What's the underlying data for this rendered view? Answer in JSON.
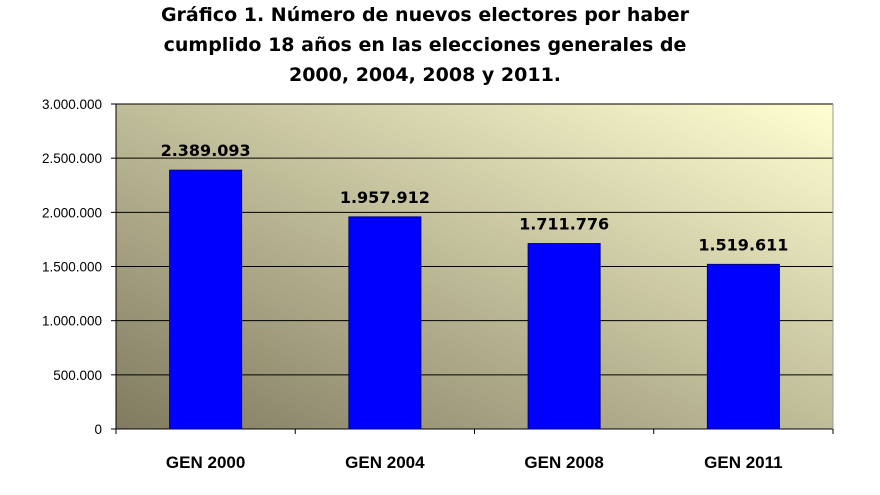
{
  "title_lines": [
    "Gráfico 1. Número de nuevos electores por haber",
    "cumplido 18 años en las elecciones generales de",
    "2000, 2004, 2008 y 2011."
  ],
  "colors": {
    "bar": "#0000ff",
    "bar_edge": "#000080",
    "plot_bg_light": "#ffffd2",
    "plot_bg_dark": "#807a60",
    "gridline": "#000000"
  },
  "chart_data": {
    "type": "bar",
    "title": "Gráfico 1. Número de nuevos electores por haber cumplido 18 años en las elecciones generales de 2000, 2004, 2008 y 2011.",
    "xlabel": "",
    "ylabel": "",
    "categories": [
      "GEN 2000",
      "GEN 2004",
      "GEN 2008",
      "GEN 2011"
    ],
    "values": [
      2389093,
      1957912,
      1711776,
      1519611
    ],
    "data_labels": [
      "2.389.093",
      "1.957.912",
      "1.711.776",
      "1.519.611"
    ],
    "ylim": [
      0,
      3000000
    ],
    "yticks": [
      0,
      500000,
      1000000,
      1500000,
      2000000,
      2500000,
      3000000
    ],
    "ytick_labels": [
      "0",
      "500.000",
      "1.000.000",
      "1.500.000",
      "2.000.000",
      "2.500.000",
      "3.000.000"
    ],
    "grid": true,
    "legend": "none"
  }
}
